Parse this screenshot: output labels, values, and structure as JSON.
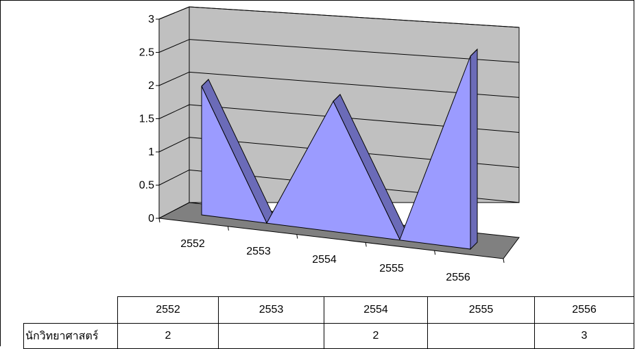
{
  "chart_data": {
    "type": "area",
    "subtype": "3d-area",
    "title": "",
    "xlabel": "",
    "ylabel": "",
    "categories": [
      "2552",
      "2553",
      "2554",
      "2555",
      "2556"
    ],
    "series": [
      {
        "name": "นักวิทยาศาสตร์",
        "values": [
          2,
          0,
          2,
          0,
          3
        ]
      }
    ],
    "ylim": [
      0,
      3
    ],
    "yticks": [
      "0",
      "0.5",
      "1",
      "1.5",
      "2",
      "2.5",
      "3"
    ],
    "grid": true,
    "legend": "none",
    "data_table": true,
    "colors": {
      "area_front": "#9b9bff",
      "area_side": "#6b6bb8",
      "wall": "#c0c0c0",
      "floor": "#808080"
    }
  },
  "table": {
    "columns": [
      "2552",
      "2553",
      "2554",
      "2555",
      "2556"
    ],
    "rows": [
      {
        "label": "นักวิทยาศาสตร์",
        "cells": [
          "2",
          "",
          "2",
          "",
          "3"
        ]
      }
    ]
  }
}
